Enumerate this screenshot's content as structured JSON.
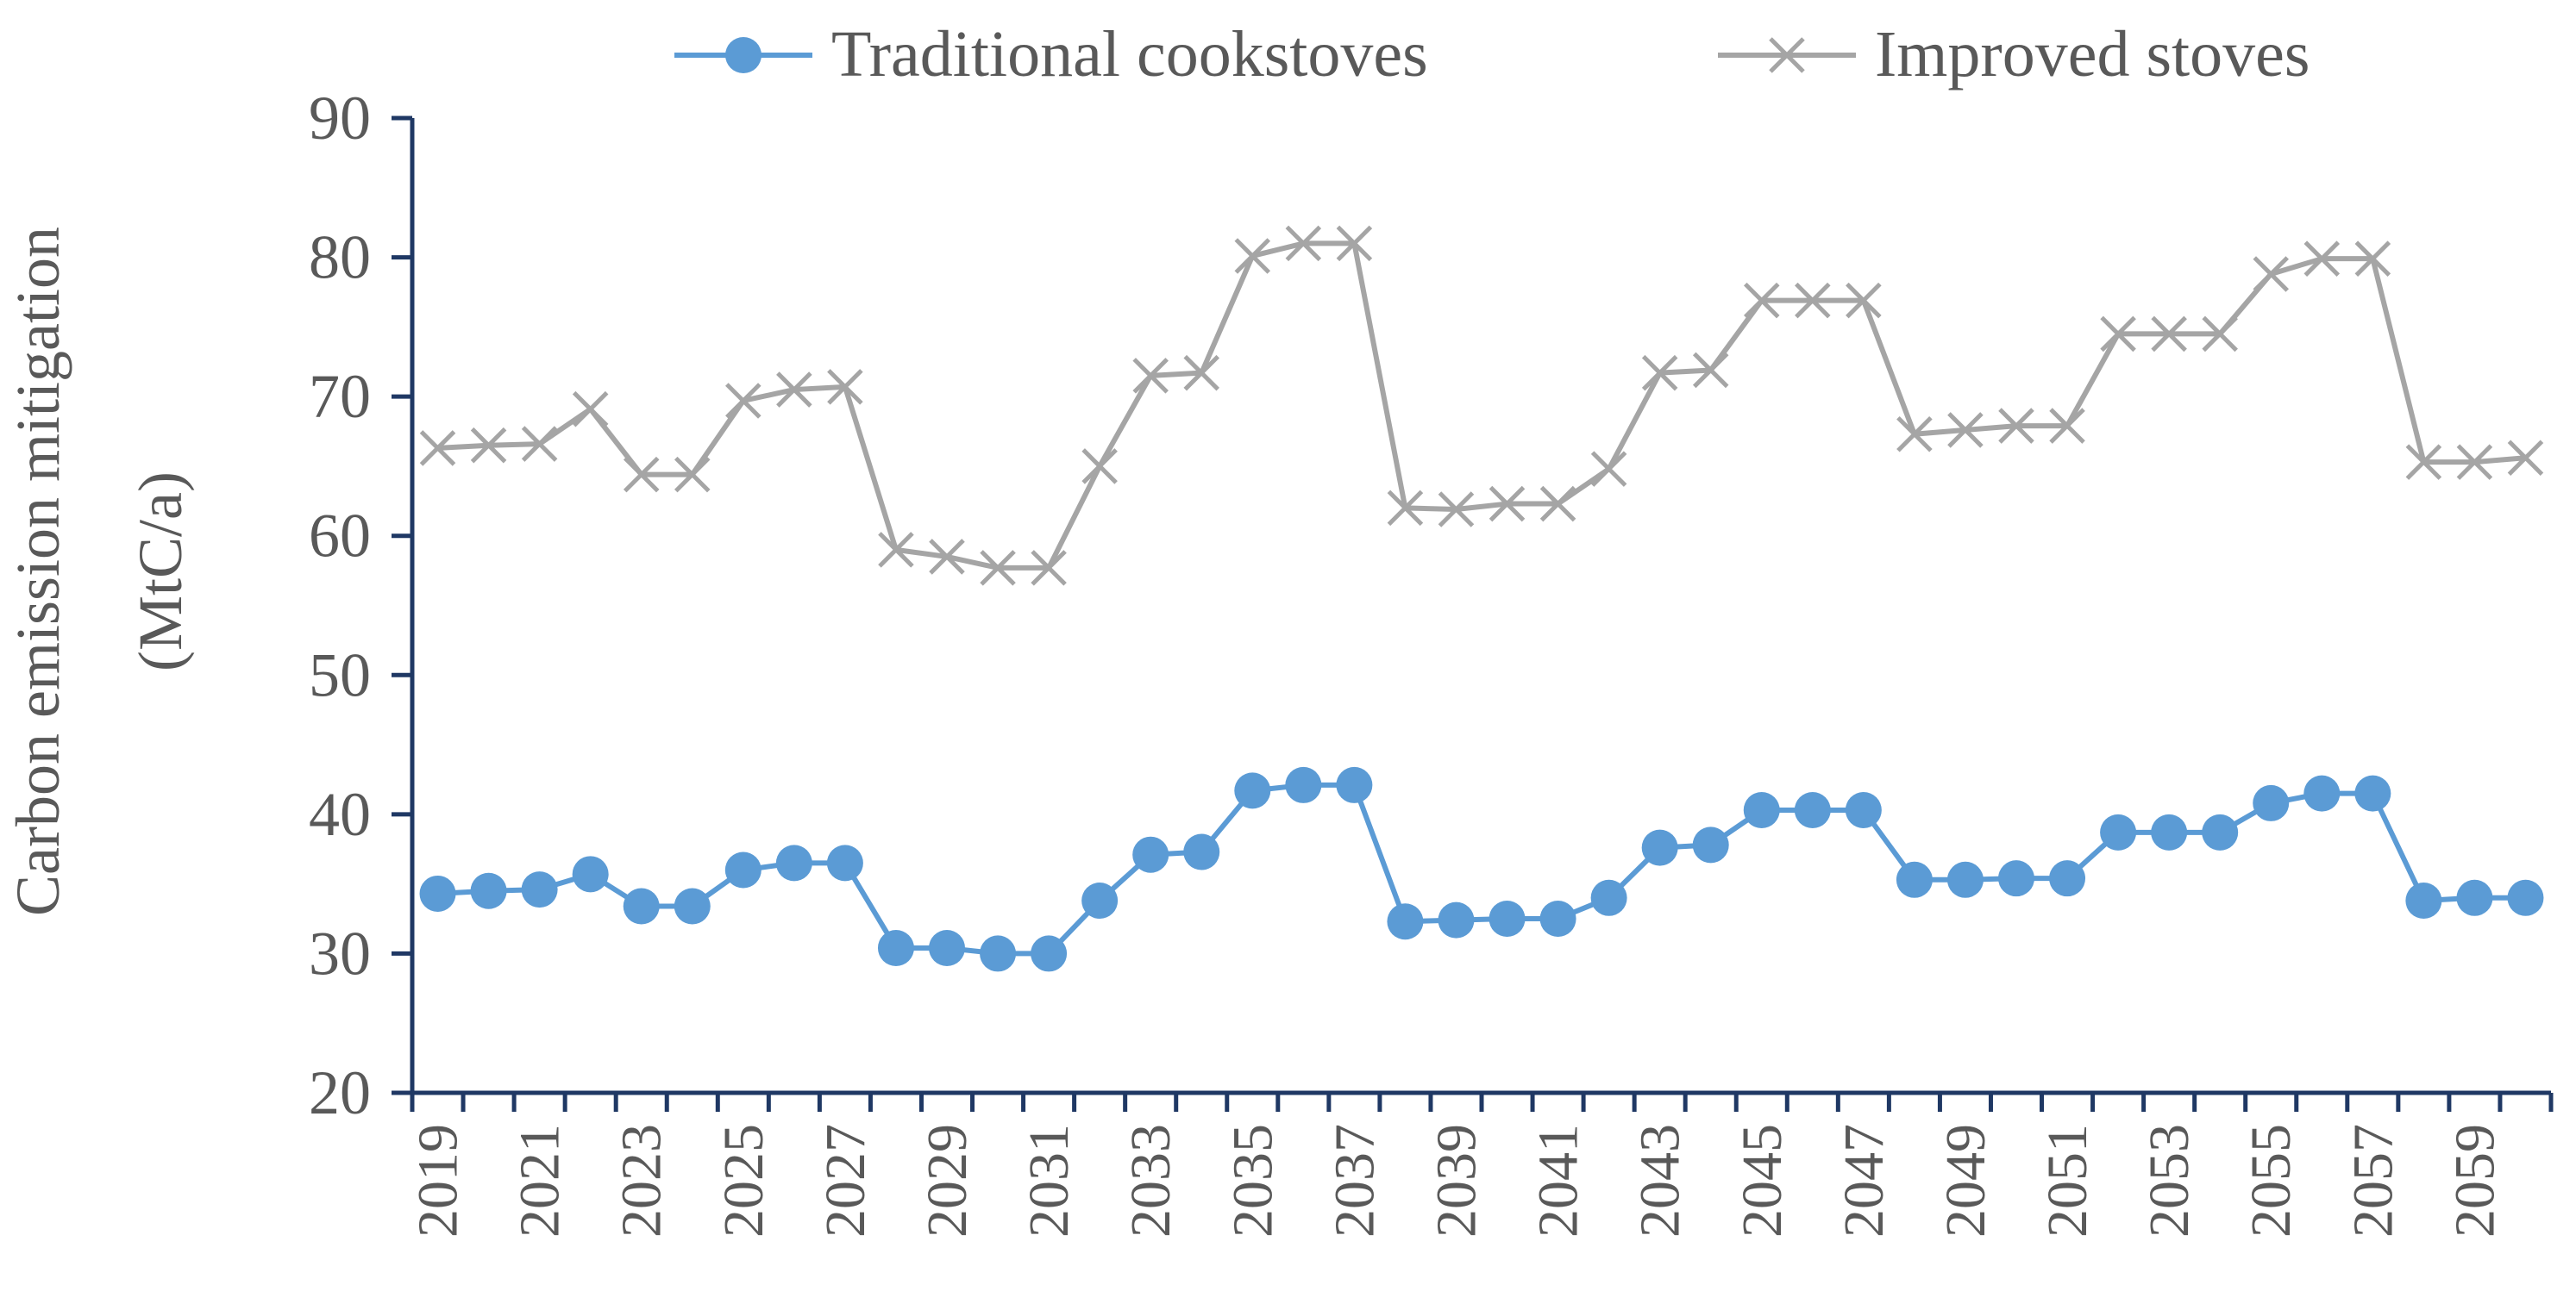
{
  "chart_data": {
    "type": "line",
    "title": "",
    "ylabel_line1": "Carbon emission mitigation",
    "ylabel_line2": "(MtC/a)",
    "xlabel": "",
    "ylim": [
      20,
      90
    ],
    "yticks": [
      20,
      30,
      40,
      50,
      60,
      70,
      80,
      90
    ],
    "x_tick_labels": [
      "2019",
      "2021",
      "2023",
      "2025",
      "2027",
      "2029",
      "2031",
      "2033",
      "2035",
      "2037",
      "2039",
      "2041",
      "2043",
      "2045",
      "2047",
      "2049",
      "2051",
      "2053",
      "2055",
      "2057",
      "2059"
    ],
    "x": [
      2019,
      2020,
      2021,
      2022,
      2023,
      2024,
      2025,
      2026,
      2027,
      2028,
      2029,
      2030,
      2031,
      2032,
      2033,
      2034,
      2035,
      2036,
      2037,
      2038,
      2039,
      2040,
      2041,
      2042,
      2043,
      2044,
      2045,
      2046,
      2047,
      2048,
      2049,
      2050,
      2051,
      2052,
      2053,
      2054,
      2055,
      2056,
      2057,
      2058,
      2059,
      2060
    ],
    "legend_position": "top",
    "grid": false,
    "series": [
      {
        "name": "Traditional cookstoves",
        "color": "#5b9bd5",
        "marker": "circle",
        "values": [
          34.3,
          34.5,
          34.6,
          35.7,
          33.4,
          33.4,
          36.0,
          36.5,
          36.5,
          30.4,
          30.4,
          30.0,
          30.0,
          33.8,
          37.1,
          37.3,
          41.7,
          42.1,
          42.1,
          32.3,
          32.4,
          32.5,
          32.5,
          34.0,
          37.6,
          37.8,
          40.3,
          40.3,
          40.3,
          35.3,
          35.3,
          35.4,
          35.4,
          38.7,
          38.7,
          38.7,
          40.8,
          41.5,
          41.5,
          33.8,
          34.0,
          34.0
        ]
      },
      {
        "name": "Improved stoves",
        "color": "#a5a5a5",
        "marker": "x",
        "values": [
          66.3,
          66.5,
          66.6,
          69.1,
          64.4,
          64.4,
          69.7,
          70.5,
          70.7,
          59.0,
          58.5,
          57.7,
          57.7,
          65.0,
          71.5,
          71.7,
          80.1,
          81.0,
          81.0,
          62.0,
          61.9,
          62.3,
          62.3,
          64.8,
          71.7,
          71.9,
          76.9,
          76.9,
          76.9,
          67.3,
          67.6,
          67.9,
          67.9,
          74.5,
          74.5,
          74.5,
          78.8,
          79.9,
          79.9,
          65.3,
          65.3,
          65.6
        ]
      }
    ]
  }
}
